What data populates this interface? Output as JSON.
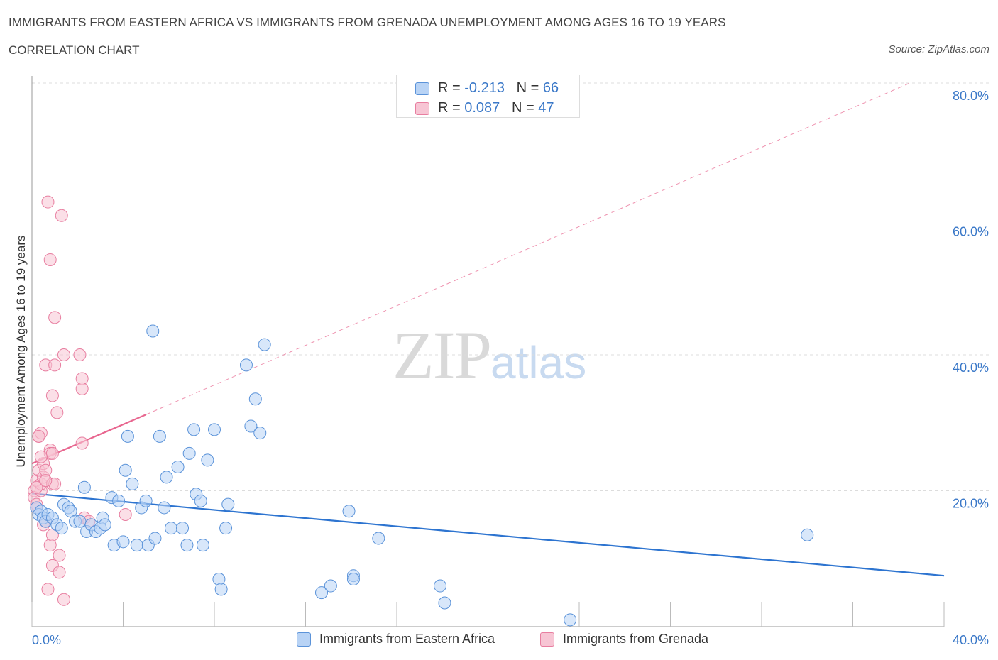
{
  "header": {
    "title": "IMMIGRANTS FROM EASTERN AFRICA VS IMMIGRANTS FROM GRENADA UNEMPLOYMENT AMONG AGES 16 TO 19 YEARS",
    "subtitle": "CORRELATION CHART",
    "source": "Source: ZipAtlas.com"
  },
  "watermark": {
    "zip": "ZIP",
    "atlas": "atlas"
  },
  "stats": {
    "row1": {
      "r_label": "R = ",
      "r_value": "-0.213",
      "n_label": "N = ",
      "n_value": "66"
    },
    "row2": {
      "r_label": "R = ",
      "r_value": " 0.087",
      "n_label": "N = ",
      "n_value": "47"
    }
  },
  "legend": {
    "series1": "Immigrants from Eastern Africa",
    "series2": "Immigrants from Grenada"
  },
  "colors": {
    "blue_fill": "#b8d3f5",
    "blue_stroke": "#5b93d9",
    "blue_line": "#2d74d0",
    "pink_fill": "#f7c5d4",
    "pink_stroke": "#e87ea0",
    "pink_line": "#e8668f",
    "grid": "#dcdcdc",
    "tick_label": "#3a78c8"
  },
  "chart_data": {
    "type": "scatter",
    "title": "IMMIGRANTS FROM EASTERN AFRICA VS IMMIGRANTS FROM GRENADA UNEMPLOYMENT AMONG AGES 16 TO 19 YEARS",
    "xlabel": "",
    "ylabel": "Unemployment Among Ages 16 to 19 years",
    "xlim": [
      0,
      40
    ],
    "ylim": [
      0,
      80
    ],
    "x_tick_labels": [
      "0.0%",
      "40.0%"
    ],
    "y_tick_labels": [
      "20.0%",
      "40.0%",
      "60.0%",
      "80.0%"
    ],
    "y_ticks": [
      20,
      40,
      60,
      80
    ],
    "series": [
      {
        "name": "Immigrants from Eastern Africa",
        "color": "#5b93d9",
        "trend": {
          "x": [
            0,
            40
          ],
          "y": [
            19.6,
            7.5
          ],
          "style": "solid"
        },
        "points": [
          [
            0.2,
            17.5
          ],
          [
            0.3,
            16.5
          ],
          [
            0.4,
            17.0
          ],
          [
            0.5,
            16.0
          ],
          [
            0.6,
            15.5
          ],
          [
            0.7,
            16.5
          ],
          [
            0.9,
            16.0
          ],
          [
            1.1,
            15.0
          ],
          [
            1.3,
            14.5
          ],
          [
            1.4,
            18.0
          ],
          [
            1.6,
            17.5
          ],
          [
            1.7,
            17.0
          ],
          [
            1.9,
            15.5
          ],
          [
            2.1,
            15.5
          ],
          [
            2.3,
            20.5
          ],
          [
            2.4,
            14.0
          ],
          [
            2.6,
            15.0
          ],
          [
            2.8,
            14.0
          ],
          [
            3.0,
            14.5
          ],
          [
            3.1,
            16.0
          ],
          [
            3.2,
            15.0
          ],
          [
            3.5,
            19.0
          ],
          [
            3.6,
            12.0
          ],
          [
            3.8,
            18.5
          ],
          [
            4.0,
            12.5
          ],
          [
            4.1,
            23.0
          ],
          [
            4.2,
            28.0
          ],
          [
            4.4,
            21.0
          ],
          [
            4.6,
            12.0
          ],
          [
            4.8,
            17.5
          ],
          [
            5.0,
            18.5
          ],
          [
            5.1,
            12.0
          ],
          [
            5.3,
            43.5
          ],
          [
            5.4,
            13.0
          ],
          [
            5.6,
            28.0
          ],
          [
            5.8,
            17.5
          ],
          [
            5.9,
            22.0
          ],
          [
            6.1,
            14.5
          ],
          [
            6.4,
            23.5
          ],
          [
            6.6,
            14.5
          ],
          [
            6.8,
            12.0
          ],
          [
            6.9,
            25.5
          ],
          [
            7.1,
            29.0
          ],
          [
            7.2,
            19.5
          ],
          [
            7.4,
            18.5
          ],
          [
            7.5,
            12.0
          ],
          [
            7.7,
            24.5
          ],
          [
            8.0,
            29.0
          ],
          [
            8.2,
            7.0
          ],
          [
            8.3,
            5.5
          ],
          [
            8.5,
            14.5
          ],
          [
            8.6,
            18.0
          ],
          [
            9.4,
            38.5
          ],
          [
            9.6,
            29.5
          ],
          [
            9.8,
            33.5
          ],
          [
            10.0,
            28.5
          ],
          [
            10.2,
            41.5
          ],
          [
            12.7,
            5.0
          ],
          [
            13.1,
            6.0
          ],
          [
            13.9,
            17.0
          ],
          [
            14.1,
            7.5
          ],
          [
            14.1,
            7.0
          ],
          [
            15.2,
            13.0
          ],
          [
            17.9,
            6.0
          ],
          [
            18.1,
            3.5
          ],
          [
            23.6,
            1.0
          ],
          [
            34.0,
            13.5
          ]
        ]
      },
      {
        "name": "Immigrants from Grenada",
        "color": "#e87ea0",
        "trend": {
          "x": [
            0,
            5.0
          ],
          "y": [
            24.0,
            31.2
          ],
          "style": "solid",
          "extended": {
            "x": [
              5.0,
              38.5
            ],
            "y": [
              31.2,
              80.0
            ],
            "style": "dashed"
          }
        },
        "points": [
          [
            0.1,
            20.0
          ],
          [
            0.1,
            19.0
          ],
          [
            0.2,
            18.0
          ],
          [
            0.2,
            21.5
          ],
          [
            0.2,
            17.5
          ],
          [
            0.3,
            23.0
          ],
          [
            0.3,
            28.0
          ],
          [
            0.4,
            28.5
          ],
          [
            0.4,
            20.0
          ],
          [
            0.4,
            21.0
          ],
          [
            0.5,
            22.0
          ],
          [
            0.5,
            15.0
          ],
          [
            0.5,
            24.0
          ],
          [
            0.6,
            38.5
          ],
          [
            0.6,
            15.5
          ],
          [
            0.6,
            23.0
          ],
          [
            0.7,
            62.5
          ],
          [
            0.7,
            5.5
          ],
          [
            0.8,
            26.0
          ],
          [
            0.8,
            54.0
          ],
          [
            0.8,
            25.5
          ],
          [
            0.8,
            12.0
          ],
          [
            0.9,
            9.0
          ],
          [
            0.9,
            25.5
          ],
          [
            0.9,
            13.5
          ],
          [
            0.9,
            21.0
          ],
          [
            0.9,
            34.0
          ],
          [
            1.0,
            45.5
          ],
          [
            1.0,
            38.5
          ],
          [
            1.0,
            21.0
          ],
          [
            1.1,
            31.5
          ],
          [
            1.2,
            10.5
          ],
          [
            1.2,
            8.0
          ],
          [
            1.3,
            60.5
          ],
          [
            1.4,
            40.0
          ],
          [
            1.4,
            4.0
          ],
          [
            2.1,
            40.0
          ],
          [
            2.2,
            36.5
          ],
          [
            2.2,
            35.0
          ],
          [
            2.2,
            27.0
          ],
          [
            2.3,
            16.0
          ],
          [
            2.5,
            15.5
          ],
          [
            4.1,
            16.5
          ],
          [
            0.3,
            28.0
          ],
          [
            0.2,
            20.5
          ],
          [
            0.4,
            25.0
          ],
          [
            0.6,
            21.5
          ]
        ]
      }
    ]
  }
}
